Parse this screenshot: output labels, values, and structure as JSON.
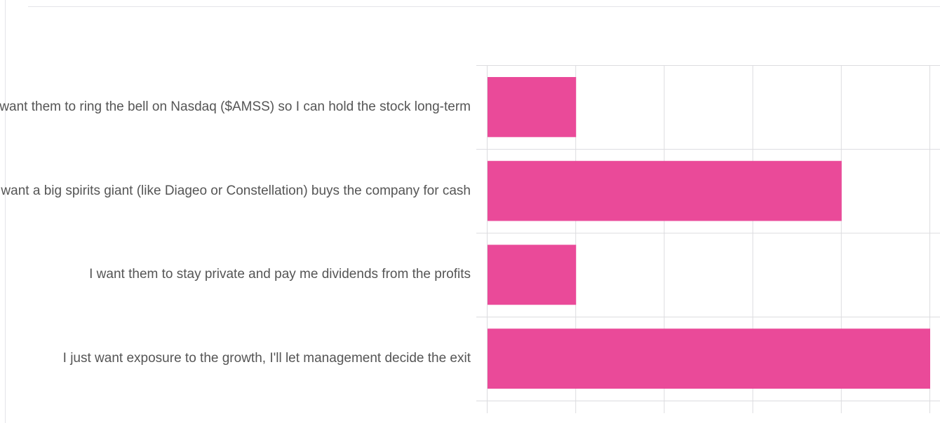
{
  "chart_data": {
    "type": "bar",
    "orientation": "horizontal",
    "categories": [
      "I want them to ring the bell on Nasdaq ($AMSS) so I can hold the stock long-term",
      "I want a big spirits giant (like Diageo or Constellation) buys the company for cash",
      "I want them to stay private and pay me dividends from the profits",
      "I just want exposure to the growth, I'll let management decide the exit"
    ],
    "values": [
      1,
      4,
      1,
      5
    ],
    "xlim": [
      0,
      5
    ],
    "grid": true,
    "bar_color": "#ea4a99",
    "grid_color": "#dcdcdf"
  }
}
